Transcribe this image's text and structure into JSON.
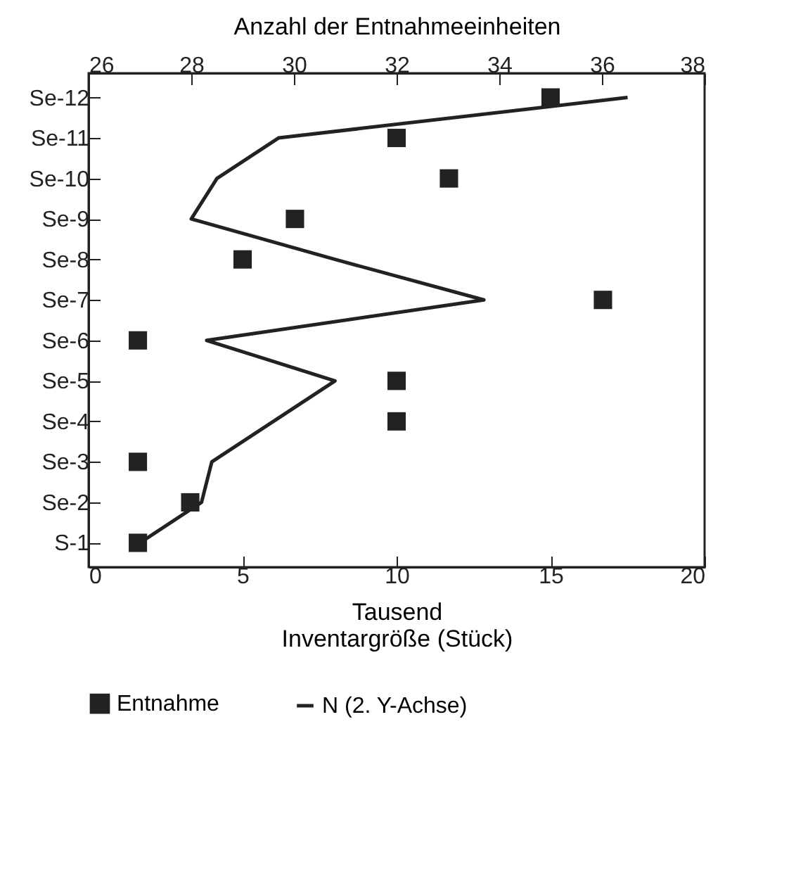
{
  "chart_data": {
    "type": "scatter",
    "categories": [
      "Se-12",
      "Se-11",
      "Se-10",
      "Se-9",
      "Se-8",
      "Se-7",
      "Se-6",
      "Se-5",
      "Se-4",
      "Se-3",
      "Se-2",
      "S-1"
    ],
    "series": [
      {
        "name": "Entnahme",
        "color": "#222222",
        "marker": "square",
        "values": [
          15.0,
          10.0,
          11.7,
          6.7,
          5.0,
          16.7,
          1.6,
          10.0,
          10.0,
          1.6,
          3.3,
          1.6
        ]
      },
      {
        "name": "N (2. Y-Achse)",
        "type": "line",
        "axis": "x2",
        "color": "#222222",
        "line_style": "solid",
        "values": [
          36.5,
          29.7,
          28.5,
          28.0,
          30.8,
          33.7,
          28.3,
          30.8,
          29.6,
          28.4,
          28.2,
          27.0
        ]
      }
    ],
    "xlim": [
      0,
      20
    ],
    "xticks": [
      0,
      5,
      10,
      15,
      20
    ],
    "xlabel": "Inventargröße (Stück)",
    "x2lim": [
      26,
      38
    ],
    "x2ticks": [
      26,
      28,
      30,
      32,
      34,
      36,
      38
    ],
    "x2label": "Anzahl der Entnahmeeinheiten",
    "annotations": [
      "Tausend"
    ],
    "orientation": "horizontal",
    "legend": "bottom",
    "grid": false
  }
}
